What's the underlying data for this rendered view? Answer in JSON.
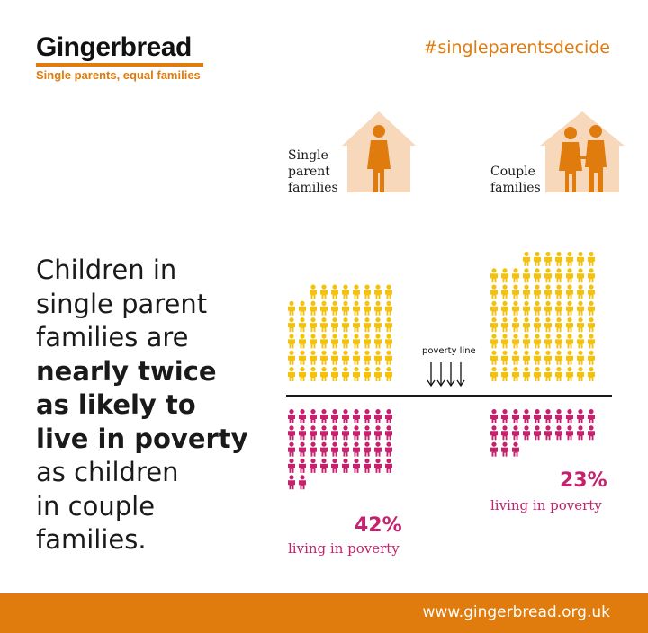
{
  "brand": {
    "name": "Gingerbread",
    "tagline": "Single parents, equal families"
  },
  "hashtag": "#singleparentsdecide",
  "headline": {
    "lines": [
      {
        "text": "Children in",
        "bold": false
      },
      {
        "text": "single parent",
        "bold": false
      },
      {
        "text": "families are",
        "bold": false
      },
      {
        "text": "nearly twice",
        "bold": true
      },
      {
        "text": "as likely to",
        "bold": true
      },
      {
        "text": "live in poverty",
        "bold": true
      },
      {
        "text": "as children",
        "bold": false
      },
      {
        "text": "in couple",
        "bold": false
      },
      {
        "text": "families.",
        "bold": false
      }
    ]
  },
  "groups": {
    "single": {
      "label_lines": [
        "Single",
        "parent",
        "families"
      ],
      "percent": "42%",
      "caption": "living in poverty"
    },
    "couple": {
      "label_lines": [
        "Couple",
        "families"
      ],
      "percent": "23%",
      "caption": "living in poverty"
    }
  },
  "poverty_line_label": "poverty line",
  "footer_url": "www.gingerbread.org.uk",
  "chart_data": {
    "type": "pictogram",
    "series": [
      {
        "name": "Single parent families",
        "above_poverty": 58,
        "below_poverty": 42,
        "poverty_percent": 42
      },
      {
        "name": "Couple families",
        "above_poverty": 77,
        "below_poverty": 23,
        "poverty_percent": 23
      }
    ]
  },
  "colors": {
    "orange": "#e07b0d",
    "yellow": "#f4c20e",
    "magenta": "#c4226c",
    "house": "#f8d8bb",
    "text": "#1a1a1a"
  }
}
